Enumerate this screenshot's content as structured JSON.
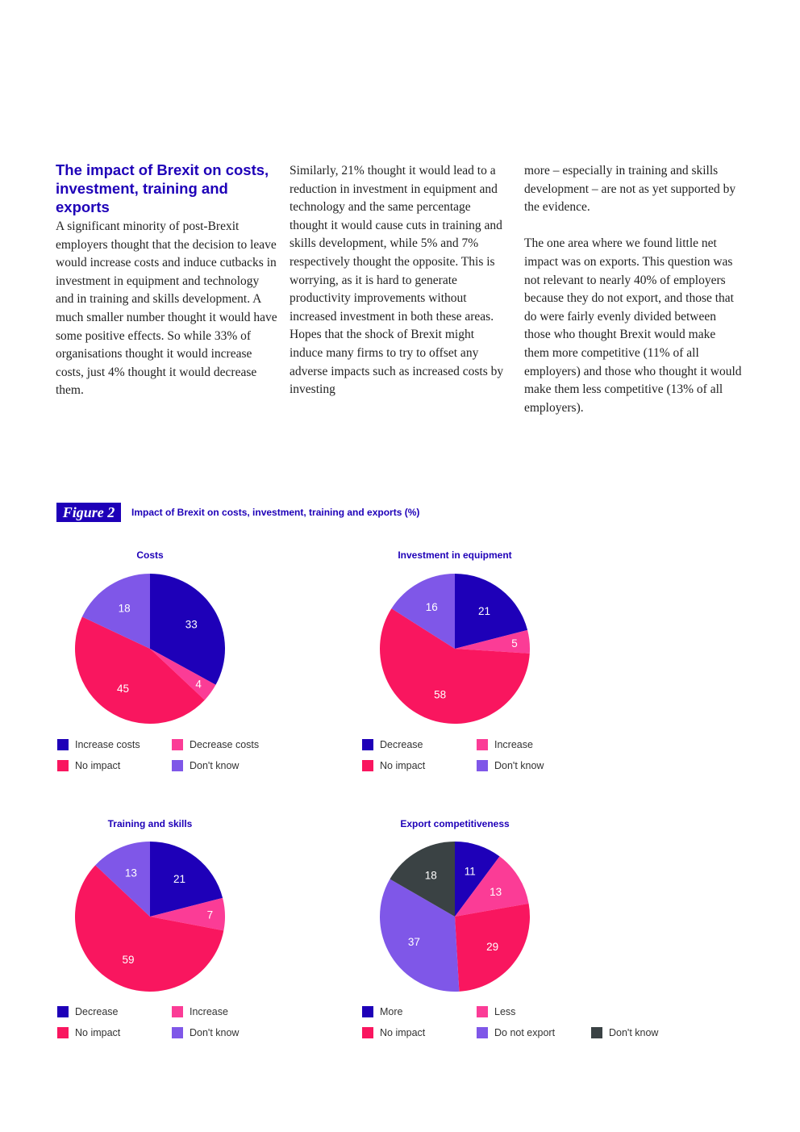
{
  "article": {
    "heading": "The impact of Brexit on costs, investment, training and exports",
    "col1": "A significant minority of post-Brexit employers thought that the decision to leave would increase costs and induce cutbacks in investment in equipment and technology and in training and skills development. A much smaller number thought it would have some positive effects. So while 33% of organisations thought it would increase costs, just 4% thought it would decrease them.",
    "col2": "Similarly, 21% thought it would lead to a reduction in investment in equipment and technology and the same percentage thought it would cause cuts in training and skills development, while 5% and 7% respectively thought the opposite. This is worrying, as it is hard to generate productivity improvements without increased investment in both these areas. Hopes that the shock of Brexit might induce many firms to try to offset any adverse impacts such as increased costs by investing",
    "col3a": "more – especially in training and skills development – are not as yet supported by the evidence.",
    "col3b": "The one area where we found little net impact was on exports. This question was not relevant to nearly 40% of employers because they do not export, and those that do were fairly evenly divided between those who thought Brexit would make them more competitive (11% of all employers) and those who thought it would make them less competitive (13% of all employers)."
  },
  "figure": {
    "badge": "Figure 2",
    "title": "Impact of Brexit on costs, investment, training and exports (%)"
  },
  "colors": {
    "blue": "#1e00b8",
    "pink": "#fb3c96",
    "red": "#f9165f",
    "purple": "#7f57e8",
    "gray": "#3a4244"
  },
  "chart_data": [
    {
      "type": "pie",
      "title": "Costs",
      "categories": [
        "Increase costs",
        "Decrease costs",
        "No impact",
        "Don't know"
      ],
      "values": [
        33,
        4,
        45,
        18
      ],
      "colors": [
        "#1e00b8",
        "#fb3c96",
        "#f9165f",
        "#7f57e8"
      ],
      "legend": "bottom"
    },
    {
      "type": "pie",
      "title": "Investment in equipment",
      "categories": [
        "Decrease",
        "Increase",
        "No impact",
        "Don't know"
      ],
      "values": [
        21,
        5,
        58,
        16
      ],
      "colors": [
        "#1e00b8",
        "#fb3c96",
        "#f9165f",
        "#7f57e8"
      ],
      "legend": "bottom"
    },
    {
      "type": "pie",
      "title": "Training and skills",
      "categories": [
        "Decrease",
        "Increase",
        "No impact",
        "Don't know"
      ],
      "values": [
        21,
        7,
        59,
        13
      ],
      "colors": [
        "#1e00b8",
        "#fb3c96",
        "#f9165f",
        "#7f57e8"
      ],
      "legend": "bottom"
    },
    {
      "type": "pie",
      "title": "Export competitiveness",
      "categories": [
        "More",
        "Less",
        "No impact",
        "Do not export",
        "Don't know"
      ],
      "values": [
        11,
        13,
        29,
        37,
        18
      ],
      "colors": [
        "#1e00b8",
        "#fb3c96",
        "#f9165f",
        "#7f57e8",
        "#3a4244"
      ],
      "legend": "bottom"
    }
  ]
}
